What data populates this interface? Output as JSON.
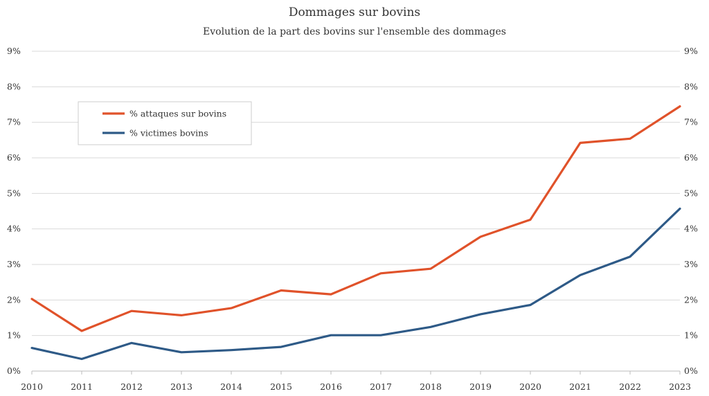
{
  "chart_data": {
    "type": "line",
    "title": "Dommages sur bovins",
    "subtitle": "Evolution de la part des bovins sur l'ensemble des dommages",
    "xlabel": "",
    "ylabel": "",
    "x": [
      "2010",
      "2011",
      "2012",
      "2013",
      "2014",
      "2015",
      "2016",
      "2017",
      "2018",
      "2019",
      "2020",
      "2021",
      "2022",
      "2023"
    ],
    "y_ticks": [
      "0%",
      "1%",
      "2%",
      "3%",
      "4%",
      "5%",
      "6%",
      "7%",
      "8%",
      "9%"
    ],
    "ylim": [
      0,
      9
    ],
    "y_unit": "%",
    "grid": true,
    "secondary_y_axis": true,
    "legend_position": "top-left",
    "series": [
      {
        "name": "% attaques sur bovins",
        "color": "#e0522a",
        "values": [
          2.03,
          1.13,
          1.69,
          1.57,
          1.77,
          2.27,
          2.16,
          2.75,
          2.88,
          3.78,
          4.26,
          6.42,
          6.54,
          7.45
        ]
      },
      {
        "name": "% victimes bovins",
        "color": "#2e5a87",
        "values": [
          0.65,
          0.34,
          0.79,
          0.53,
          0.59,
          0.68,
          1.01,
          1.01,
          1.24,
          1.6,
          1.86,
          2.7,
          3.22,
          4.57
        ]
      }
    ]
  }
}
